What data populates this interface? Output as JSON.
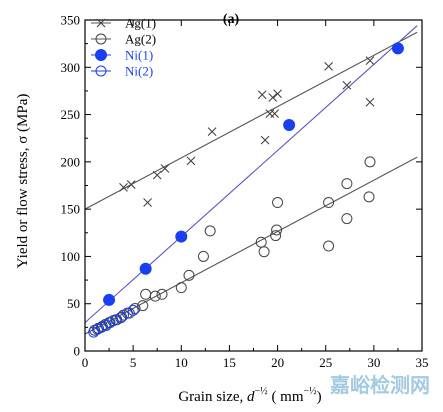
{
  "chart_data": {
    "type": "scatter",
    "panel_label": "(a)",
    "xlabel": "Grain size, d^(-1/2) (mm^(-1/2))",
    "xlabel_parts": {
      "main": "Grain size, ",
      "var": "d",
      "sup": "−½",
      "unit_open": " ( mm",
      "unit_sup": "−½",
      "unit_close": ")"
    },
    "ylabel": "Yield or flow stress, σ (MPa)",
    "xlim": [
      0,
      35
    ],
    "ylim": [
      0,
      350
    ],
    "xticks": [
      0,
      5,
      10,
      15,
      20,
      25,
      30,
      35
    ],
    "yticks": [
      0,
      50,
      100,
      150,
      200,
      250,
      300,
      350
    ],
    "grid": false,
    "legend_position": "top-left",
    "series": [
      {
        "name": "Ag(1)",
        "marker": "cross",
        "color": "#444444",
        "x": [
          4.0,
          4.8,
          6.5,
          7.5,
          8.3,
          11.0,
          13.2,
          18.4,
          18.7,
          19.2,
          19.5,
          19.7,
          20.0,
          25.3,
          27.2,
          29.6,
          29.6
        ],
        "y": [
          173,
          176,
          157,
          186,
          193,
          201,
          232,
          271,
          223,
          251,
          268,
          251,
          272,
          301,
          281,
          307,
          263
        ],
        "fit": {
          "x": [
            0,
            34.5
          ],
          "y": [
            150,
            337
          ]
        }
      },
      {
        "name": "Ag(2)",
        "marker": "open-circle",
        "color": "#444444",
        "x": [
          1.0,
          1.4,
          1.8,
          2.1,
          2.5,
          2.9,
          3.3,
          3.7,
          4.0,
          4.6,
          5.2,
          6.0,
          6.3,
          7.3,
          8.0,
          10.0,
          10.8,
          12.3,
          13.0,
          18.3,
          18.6,
          19.8,
          19.9,
          20.0,
          25.3,
          25.3,
          27.2,
          27.2,
          29.5,
          29.6
        ],
        "y": [
          22,
          24,
          26,
          28,
          30,
          32,
          33,
          35,
          38,
          40,
          45,
          48,
          60,
          58,
          60,
          67,
          80,
          100,
          127,
          115,
          105,
          122,
          128,
          157,
          157,
          111,
          140,
          177,
          163,
          200
        ],
        "fit": {
          "x": [
            0,
            34.5
          ],
          "y": [
            18,
            205
          ]
        }
      },
      {
        "name": "Ni(1)",
        "marker": "filled-circle",
        "color": "#1a3ff0",
        "x": [
          2.5,
          6.3,
          10.0,
          21.2,
          32.5
        ],
        "y": [
          54,
          87,
          121,
          239,
          320
        ],
        "fit": {
          "x": [
            0,
            34.5
          ],
          "y": [
            30,
            344
          ]
        }
      },
      {
        "name": "Ni(2)",
        "marker": "open-circle",
        "color": "#1a3ff0",
        "x": [
          0.9,
          1.3,
          1.7,
          2.2,
          2.6,
          3.2,
          3.8,
          4.4,
          5.0
        ],
        "y": [
          20,
          23,
          25,
          27,
          30,
          33,
          36,
          40,
          43
        ],
        "fit": null
      }
    ]
  },
  "watermark": "嘉峪检测网"
}
